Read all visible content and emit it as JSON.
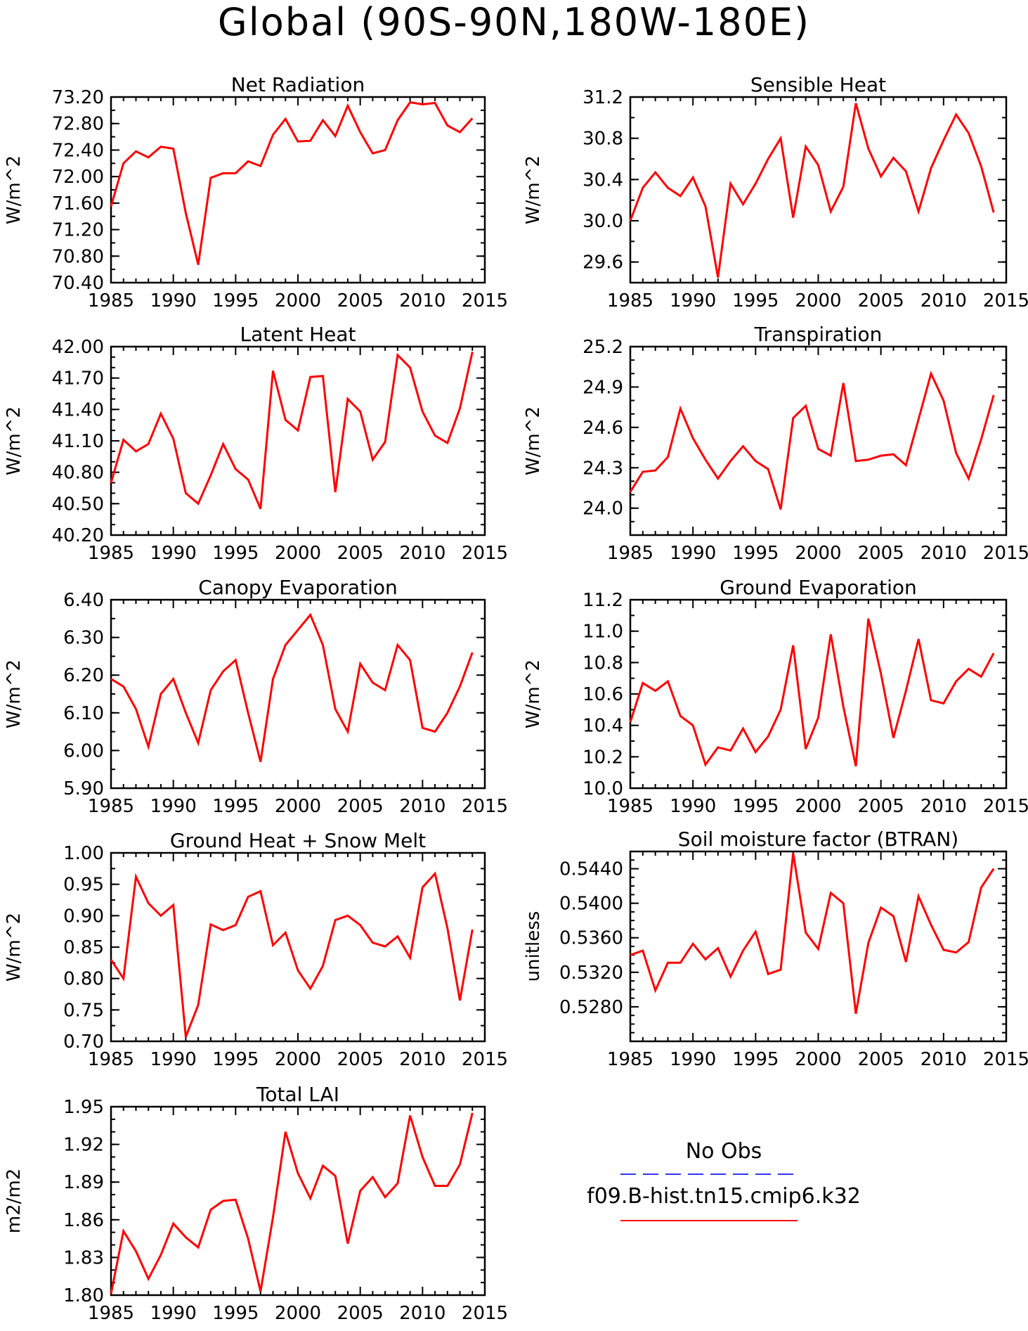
{
  "page_title": "Global (90S-90N,180W-180E)",
  "colors": {
    "model_line": "#ff0000",
    "obs_line": "#3333ff",
    "axis": "#000000"
  },
  "legend": {
    "obs_label": "No Obs",
    "model_label": "f09.B-hist.tn15.cmip6.k32"
  },
  "chart_data": [
    {
      "type": "line",
      "title": "Net Radiation",
      "ylabel": "W/m^2",
      "xlim": [
        1985,
        2015
      ],
      "ylim": [
        70.4,
        73.2
      ],
      "xticks": [
        1985,
        1990,
        1995,
        2000,
        2005,
        2010,
        2015
      ],
      "yticks": [
        "70.40",
        "70.80",
        "71.20",
        "71.60",
        "72.00",
        "72.40",
        "72.80",
        "73.20"
      ],
      "yticks_num": [
        70.4,
        70.8,
        71.2,
        71.6,
        72.0,
        72.4,
        72.8,
        73.2
      ],
      "minor_y": 0.2,
      "x": [
        1985,
        1986,
        1987,
        1988,
        1989,
        1990,
        1991,
        1992,
        1993,
        1994,
        1995,
        1996,
        1997,
        1998,
        1999,
        2000,
        2001,
        2002,
        2003,
        2004,
        2005,
        2006,
        2007,
        2008,
        2009,
        2010,
        2011,
        2012,
        2013,
        2014
      ],
      "series": [
        {
          "values": [
            71.55,
            72.2,
            72.38,
            72.29,
            72.45,
            72.42,
            71.45,
            70.67,
            71.98,
            72.05,
            72.05,
            72.23,
            72.16,
            72.63,
            72.87,
            72.53,
            72.54,
            72.85,
            72.61,
            73.07,
            72.67,
            72.35,
            72.4,
            72.85,
            73.12,
            73.09,
            73.11,
            72.77,
            72.67,
            72.88
          ]
        }
      ]
    },
    {
      "type": "line",
      "title": "Sensible Heat",
      "ylabel": "W/m^2",
      "xlim": [
        1985,
        2015
      ],
      "ylim": [
        29.4,
        31.2
      ],
      "xticks": [
        1985,
        1990,
        1995,
        2000,
        2005,
        2010,
        2015
      ],
      "yticks": [
        "29.6",
        "30.0",
        "30.4",
        "30.8",
        "31.2"
      ],
      "yticks_num": [
        29.6,
        30.0,
        30.4,
        30.8,
        31.2
      ],
      "minor_y": 0.2,
      "x": [
        1985,
        1986,
        1987,
        1988,
        1989,
        1990,
        1991,
        1992,
        1993,
        1994,
        1995,
        1996,
        1997,
        1998,
        1999,
        2000,
        2001,
        2002,
        2003,
        2004,
        2005,
        2006,
        2007,
        2008,
        2009,
        2010,
        2011,
        2012,
        2013,
        2014
      ],
      "series": [
        {
          "values": [
            30.0,
            30.32,
            30.47,
            30.32,
            30.24,
            30.42,
            30.14,
            29.45,
            30.36,
            30.16,
            30.36,
            30.6,
            30.8,
            30.03,
            30.72,
            30.54,
            30.09,
            30.33,
            31.14,
            30.7,
            30.43,
            30.61,
            30.48,
            30.09,
            30.51,
            30.78,
            31.03,
            30.85,
            30.53,
            30.08
          ]
        }
      ]
    },
    {
      "type": "line",
      "title": "Latent Heat",
      "ylabel": "W/m^2",
      "xlim": [
        1985,
        2015
      ],
      "ylim": [
        40.2,
        42.0
      ],
      "xticks": [
        1985,
        1990,
        1995,
        2000,
        2005,
        2010,
        2015
      ],
      "yticks": [
        "40.20",
        "40.50",
        "40.80",
        "41.10",
        "41.40",
        "41.70",
        "42.00"
      ],
      "yticks_num": [
        40.2,
        40.5,
        40.8,
        41.1,
        41.4,
        41.7,
        42.0
      ],
      "minor_y": 0.1,
      "x": [
        1985,
        1986,
        1987,
        1988,
        1989,
        1990,
        1991,
        1992,
        1993,
        1994,
        1995,
        1996,
        1997,
        1998,
        1999,
        2000,
        2001,
        2002,
        2003,
        2004,
        2005,
        2006,
        2007,
        2008,
        2009,
        2010,
        2011,
        2012,
        2013,
        2014
      ],
      "series": [
        {
          "values": [
            40.7,
            41.11,
            41.0,
            41.07,
            41.36,
            41.12,
            40.6,
            40.5,
            40.77,
            41.07,
            40.83,
            40.73,
            40.45,
            41.77,
            41.3,
            41.2,
            41.71,
            41.72,
            40.61,
            41.5,
            41.38,
            40.92,
            41.09,
            41.92,
            41.8,
            41.38,
            41.15,
            41.08,
            41.41,
            41.95
          ]
        }
      ]
    },
    {
      "type": "line",
      "title": "Transpiration",
      "ylabel": "W/m^2",
      "xlim": [
        1985,
        2015
      ],
      "ylim": [
        23.8,
        25.2
      ],
      "xticks": [
        1985,
        1990,
        1995,
        2000,
        2005,
        2010,
        2015
      ],
      "yticks": [
        "24.0",
        "24.3",
        "24.6",
        "24.9",
        "25.2"
      ],
      "yticks_num": [
        24.0,
        24.3,
        24.6,
        24.9,
        25.2
      ],
      "minor_y": 0.1,
      "x": [
        1985,
        1986,
        1987,
        1988,
        1989,
        1990,
        1991,
        1992,
        1993,
        1994,
        1995,
        1996,
        1997,
        1998,
        1999,
        2000,
        2001,
        2002,
        2003,
        2004,
        2005,
        2006,
        2007,
        2008,
        2009,
        2010,
        2011,
        2012,
        2013,
        2014
      ],
      "series": [
        {
          "values": [
            24.12,
            24.27,
            24.28,
            24.38,
            24.74,
            24.52,
            24.36,
            24.22,
            24.35,
            24.46,
            24.35,
            24.29,
            23.99,
            24.67,
            24.76,
            24.44,
            24.39,
            24.93,
            24.35,
            24.36,
            24.39,
            24.4,
            24.32,
            24.66,
            25.0,
            24.8,
            24.41,
            24.22,
            24.51,
            24.84
          ]
        }
      ]
    },
    {
      "type": "line",
      "title": "Canopy Evaporation",
      "ylabel": "W/m^2",
      "xlim": [
        1985,
        2015
      ],
      "ylim": [
        5.9,
        6.4
      ],
      "xticks": [
        1985,
        1990,
        1995,
        2000,
        2005,
        2010,
        2015
      ],
      "yticks": [
        "5.90",
        "6.00",
        "6.10",
        "6.20",
        "6.30",
        "6.40"
      ],
      "yticks_num": [
        5.9,
        6.0,
        6.1,
        6.2,
        6.3,
        6.4
      ],
      "minor_y": 0.05,
      "x": [
        1985,
        1986,
        1987,
        1988,
        1989,
        1990,
        1991,
        1992,
        1993,
        1994,
        1995,
        1996,
        1997,
        1998,
        1999,
        2000,
        2001,
        2002,
        2003,
        2004,
        2005,
        2006,
        2007,
        2008,
        2009,
        2010,
        2011,
        2012,
        2013,
        2014
      ],
      "series": [
        {
          "values": [
            6.19,
            6.17,
            6.11,
            6.01,
            6.15,
            6.19,
            6.1,
            6.02,
            6.16,
            6.21,
            6.24,
            6.1,
            5.97,
            6.19,
            6.28,
            6.32,
            6.36,
            6.28,
            6.11,
            6.05,
            6.23,
            6.18,
            6.16,
            6.28,
            6.24,
            6.06,
            6.05,
            6.1,
            6.17,
            6.26
          ]
        }
      ]
    },
    {
      "type": "line",
      "title": "Ground Evaporation",
      "ylabel": "W/m^2",
      "xlim": [
        1985,
        2015
      ],
      "ylim": [
        10.0,
        11.2
      ],
      "xticks": [
        1985,
        1990,
        1995,
        2000,
        2005,
        2010,
        2015
      ],
      "yticks": [
        "10.0",
        "10.2",
        "10.4",
        "10.6",
        "10.8",
        "11.0",
        "11.2"
      ],
      "yticks_num": [
        10.0,
        10.2,
        10.4,
        10.6,
        10.8,
        11.0,
        11.2
      ],
      "minor_y": 0.1,
      "x": [
        1985,
        1986,
        1987,
        1988,
        1989,
        1990,
        1991,
        1992,
        1993,
        1994,
        1995,
        1996,
        1997,
        1998,
        1999,
        2000,
        2001,
        2002,
        2003,
        2004,
        2005,
        2006,
        2007,
        2008,
        2009,
        2010,
        2011,
        2012,
        2013,
        2014
      ],
      "series": [
        {
          "values": [
            10.42,
            10.67,
            10.62,
            10.68,
            10.46,
            10.4,
            10.15,
            10.26,
            10.24,
            10.38,
            10.23,
            10.33,
            10.5,
            10.91,
            10.25,
            10.45,
            10.98,
            10.52,
            10.14,
            11.08,
            10.73,
            10.32,
            10.62,
            10.95,
            10.56,
            10.54,
            10.68,
            10.76,
            10.71,
            10.86
          ]
        }
      ]
    },
    {
      "type": "line",
      "title": "Ground Heat + Snow Melt",
      "ylabel": "W/m^2",
      "xlim": [
        1985,
        2015
      ],
      "ylim": [
        0.7,
        1.0
      ],
      "xticks": [
        1985,
        1990,
        1995,
        2000,
        2005,
        2010,
        2015
      ],
      "yticks": [
        "0.70",
        "0.75",
        "0.80",
        "0.85",
        "0.90",
        "0.95",
        "1.00"
      ],
      "yticks_num": [
        0.7,
        0.75,
        0.8,
        0.85,
        0.9,
        0.95,
        1.0
      ],
      "minor_y": 0.025,
      "x": [
        1985,
        1986,
        1987,
        1988,
        1989,
        1990,
        1991,
        1992,
        1993,
        1994,
        1995,
        1996,
        1997,
        1998,
        1999,
        2000,
        2001,
        2002,
        2003,
        2004,
        2005,
        2006,
        2007,
        2008,
        2009,
        2010,
        2011,
        2012,
        2013,
        2014
      ],
      "series": [
        {
          "values": [
            0.83,
            0.8,
            0.962,
            0.92,
            0.9,
            0.917,
            0.707,
            0.758,
            0.886,
            0.877,
            0.885,
            0.93,
            0.939,
            0.853,
            0.873,
            0.813,
            0.784,
            0.82,
            0.893,
            0.9,
            0.885,
            0.857,
            0.851,
            0.867,
            0.833,
            0.945,
            0.967,
            0.88,
            0.765,
            0.878
          ]
        }
      ]
    },
    {
      "type": "line",
      "title": "Soil moisture factor (BTRAN)",
      "ylabel": "unitless",
      "xlim": [
        1985,
        2015
      ],
      "ylim": [
        0.524,
        0.546
      ],
      "xticks": [
        1985,
        1990,
        1995,
        2000,
        2005,
        2010,
        2015
      ],
      "yticks": [
        "0.5280",
        "0.5320",
        "0.5360",
        "0.5400",
        "0.5440"
      ],
      "yticks_num": [
        0.528,
        0.532,
        0.536,
        0.54,
        0.544
      ],
      "minor_y": 0.001,
      "x": [
        1985,
        1986,
        1987,
        1988,
        1989,
        1990,
        1991,
        1992,
        1993,
        1994,
        1995,
        1996,
        1997,
        1998,
        1999,
        2000,
        2001,
        2002,
        2003,
        2004,
        2005,
        2006,
        2007,
        2008,
        2009,
        2010,
        2011,
        2012,
        2013,
        2014
      ],
      "series": [
        {
          "values": [
            0.534,
            0.5345,
            0.5299,
            0.5331,
            0.5331,
            0.5353,
            0.5335,
            0.5348,
            0.5315,
            0.5345,
            0.5367,
            0.5318,
            0.5323,
            0.5458,
            0.5366,
            0.5347,
            0.5412,
            0.54,
            0.5272,
            0.5354,
            0.5395,
            0.5385,
            0.5332,
            0.5408,
            0.5375,
            0.5346,
            0.5343,
            0.5355,
            0.5418,
            0.544
          ]
        }
      ]
    },
    {
      "type": "line",
      "title": "Total LAI",
      "ylabel": "m2/m2",
      "xlim": [
        1985,
        2015
      ],
      "ylim": [
        1.8,
        1.95
      ],
      "xticks": [
        1985,
        1990,
        1995,
        2000,
        2005,
        2010,
        2015
      ],
      "yticks": [
        "1.80",
        "1.83",
        "1.86",
        "1.89",
        "1.92",
        "1.95"
      ],
      "yticks_num": [
        1.8,
        1.83,
        1.86,
        1.89,
        1.92,
        1.95
      ],
      "minor_y": 0.01,
      "x": [
        1985,
        1986,
        1987,
        1988,
        1989,
        1990,
        1991,
        1992,
        1993,
        1994,
        1995,
        1996,
        1997,
        1998,
        1999,
        2000,
        2001,
        2002,
        2003,
        2004,
        2005,
        2006,
        2007,
        2008,
        2009,
        2010,
        2011,
        2012,
        2013,
        2014
      ],
      "series": [
        {
          "values": [
            1.801,
            1.851,
            1.835,
            1.813,
            1.832,
            1.857,
            1.846,
            1.838,
            1.868,
            1.875,
            1.876,
            1.845,
            1.803,
            1.862,
            1.93,
            1.897,
            1.877,
            1.903,
            1.895,
            1.841,
            1.883,
            1.894,
            1.878,
            1.889,
            1.943,
            1.91,
            1.887,
            1.887,
            1.904,
            1.945
          ]
        }
      ]
    }
  ]
}
